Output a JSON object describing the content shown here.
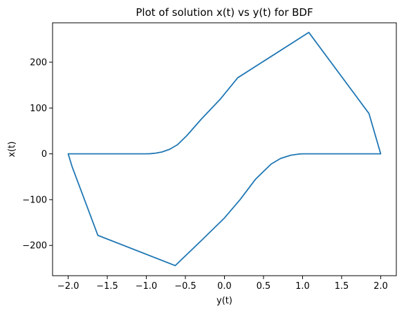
{
  "chart_data": {
    "type": "line",
    "title": "Plot of solution x(t) vs y(t) for BDF",
    "xlabel": "y(t)",
    "ylabel": "x(t)",
    "xlim": [
      -2.2,
      2.2
    ],
    "ylim": [
      -266,
      286
    ],
    "xticks": [
      -2.0,
      -1.5,
      -1.0,
      -0.5,
      0.0,
      0.5,
      1.0,
      1.5,
      2.0
    ],
    "xtick_labels": [
      "−2.0",
      "−1.5",
      "−1.0",
      "−0.5",
      "0.0",
      "0.5",
      "1.0",
      "1.5",
      "2.0"
    ],
    "yticks": [
      -200,
      -100,
      0,
      100,
      200
    ],
    "ytick_labels": [
      "−200",
      "−100",
      "0",
      "100",
      "200"
    ],
    "grid": false,
    "series": [
      {
        "color": "#1f77b4",
        "x": [
          1.68,
          2.0,
          1.85,
          1.08,
          0.17,
          -0.05,
          -0.3,
          -0.48,
          -0.6,
          -0.7,
          -0.8,
          -0.88,
          -0.95,
          -1.0,
          -2.0,
          -1.95,
          -1.62,
          -0.63,
          -0.3,
          0.0,
          0.2,
          0.4,
          0.6,
          0.72,
          0.85,
          0.95,
          1.0,
          1.5,
          2.0
        ],
        "y": [
          0,
          0,
          88,
          265,
          166,
          120,
          75,
          40,
          20,
          10,
          4,
          1.5,
          0.3,
          0,
          0,
          -28,
          -178,
          -244,
          -190,
          -140,
          -100,
          -55,
          -22,
          -10,
          -3,
          -0.5,
          0,
          0,
          0
        ]
      }
    ]
  }
}
